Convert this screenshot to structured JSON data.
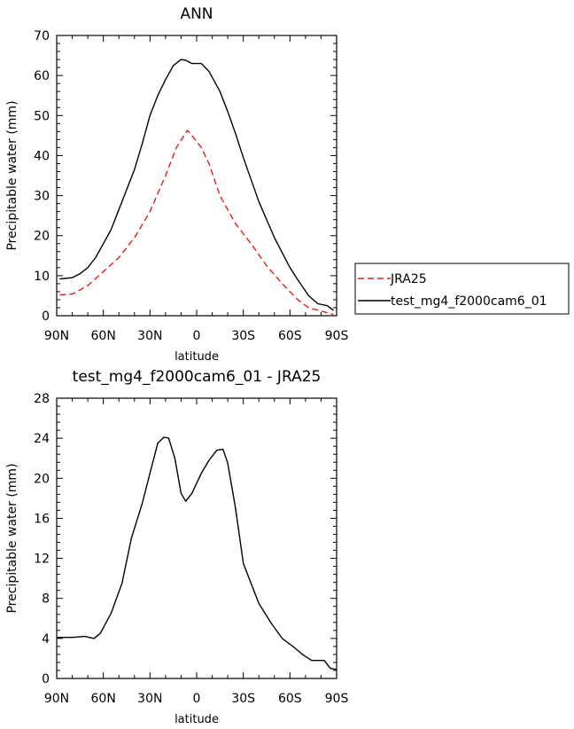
{
  "chart_data": [
    {
      "type": "line",
      "title": "ANN",
      "xlabel": "latitude",
      "ylabel": "Precipitable water (mm)",
      "x_ticks": [
        -90,
        -60,
        -30,
        0,
        30,
        60,
        90
      ],
      "x_tick_labels": [
        "90N",
        "60N",
        "30N",
        "0",
        "30S",
        "60S",
        "90S"
      ],
      "y_ticks": [
        0,
        10,
        20,
        30,
        40,
        50,
        60,
        70
      ],
      "y_tick_labels": [
        "0",
        "10",
        "20",
        "30",
        "40",
        "50",
        "60",
        "70"
      ],
      "xlim": [
        -90,
        90
      ],
      "ylim": [
        0,
        70
      ],
      "legend": {
        "placement": "right",
        "entries": [
          {
            "label": "JRA25",
            "color": "#e0201b",
            "dash": "dashed"
          },
          {
            "label": "test_mg4_f2000cam6_01",
            "color": "#000000",
            "dash": "solid"
          }
        ]
      },
      "series": [
        {
          "name": "JRA25",
          "color": "#e0201b",
          "dash": "dashed",
          "points": [
            [
              -88,
              5.2
            ],
            [
              -80,
              5.4
            ],
            [
              -70,
              7.5
            ],
            [
              -60,
              11
            ],
            [
              -50,
              14.5
            ],
            [
              -40,
              19.5
            ],
            [
              -30,
              26
            ],
            [
              -20,
              35
            ],
            [
              -13,
              42
            ],
            [
              -6,
              46.3
            ],
            [
              -3,
              45
            ],
            [
              3,
              42
            ],
            [
              8,
              38
            ],
            [
              15,
              30
            ],
            [
              25,
              23
            ],
            [
              35,
              18
            ],
            [
              45,
              12.5
            ],
            [
              55,
              8
            ],
            [
              65,
              4
            ],
            [
              72,
              2
            ],
            [
              80,
              1.2
            ],
            [
              88,
              0.3
            ]
          ]
        },
        {
          "name": "test_mg4_f2000cam6_01",
          "color": "#000000",
          "dash": "solid",
          "points": [
            [
              -88,
              9.2
            ],
            [
              -80,
              9.5
            ],
            [
              -75,
              10.5
            ],
            [
              -70,
              12
            ],
            [
              -65,
              14.5
            ],
            [
              -60,
              18
            ],
            [
              -55,
              21.5
            ],
            [
              -50,
              26.5
            ],
            [
              -45,
              31.5
            ],
            [
              -40,
              36.5
            ],
            [
              -35,
              43
            ],
            [
              -30,
              50
            ],
            [
              -25,
              55
            ],
            [
              -20,
              59
            ],
            [
              -15,
              62.5
            ],
            [
              -10,
              64
            ],
            [
              -7,
              63.8
            ],
            [
              -3,
              63
            ],
            [
              3,
              63
            ],
            [
              8,
              61
            ],
            [
              15,
              56
            ],
            [
              20,
              51
            ],
            [
              25,
              45.5
            ],
            [
              30,
              39.5
            ],
            [
              40,
              28.5
            ],
            [
              50,
              19.5
            ],
            [
              60,
              12
            ],
            [
              65,
              9
            ],
            [
              72,
              5
            ],
            [
              78,
              3
            ],
            [
              84,
              2.5
            ],
            [
              88,
              1.3
            ]
          ]
        }
      ]
    },
    {
      "type": "line",
      "title": "test_mg4_f2000cam6_01 - JRA25",
      "xlabel": "latitude",
      "ylabel": "Precipitable water (mm)",
      "x_ticks": [
        -90,
        -60,
        -30,
        0,
        30,
        60,
        90
      ],
      "x_tick_labels": [
        "90N",
        "60N",
        "30N",
        "0",
        "30S",
        "60S",
        "90S"
      ],
      "y_ticks": [
        0,
        4,
        8,
        12,
        16,
        20,
        24,
        28
      ],
      "y_tick_labels": [
        "0",
        "4",
        "8",
        "12",
        "16",
        "20",
        "24",
        "28"
      ],
      "xlim": [
        -90,
        90
      ],
      "ylim": [
        0,
        28
      ],
      "series": [
        {
          "color": "#000000",
          "dash": "solid",
          "points": [
            [
              -90,
              4.1
            ],
            [
              -80,
              4.1
            ],
            [
              -72,
              4.2
            ],
            [
              -66,
              4
            ],
            [
              -62,
              4.5
            ],
            [
              -55,
              6.5
            ],
            [
              -48,
              9.5
            ],
            [
              -42,
              14
            ],
            [
              -35,
              17.5
            ],
            [
              -30,
              20.5
            ],
            [
              -25,
              23.5
            ],
            [
              -21,
              24.1
            ],
            [
              -18,
              24
            ],
            [
              -14,
              22
            ],
            [
              -10,
              18.5
            ],
            [
              -7,
              17.7
            ],
            [
              -3,
              18.5
            ],
            [
              3,
              20.5
            ],
            [
              8,
              21.8
            ],
            [
              13,
              22.8
            ],
            [
              17,
              22.9
            ],
            [
              20,
              21.5
            ],
            [
              25,
              17
            ],
            [
              30,
              11.5
            ],
            [
              35,
              9.5
            ],
            [
              40,
              7.5
            ],
            [
              48,
              5.5
            ],
            [
              55,
              4
            ],
            [
              62,
              3.2
            ],
            [
              68,
              2.4
            ],
            [
              74,
              1.8
            ],
            [
              82,
              1.8
            ],
            [
              86,
              1
            ],
            [
              90,
              0.9
            ]
          ]
        }
      ]
    }
  ]
}
